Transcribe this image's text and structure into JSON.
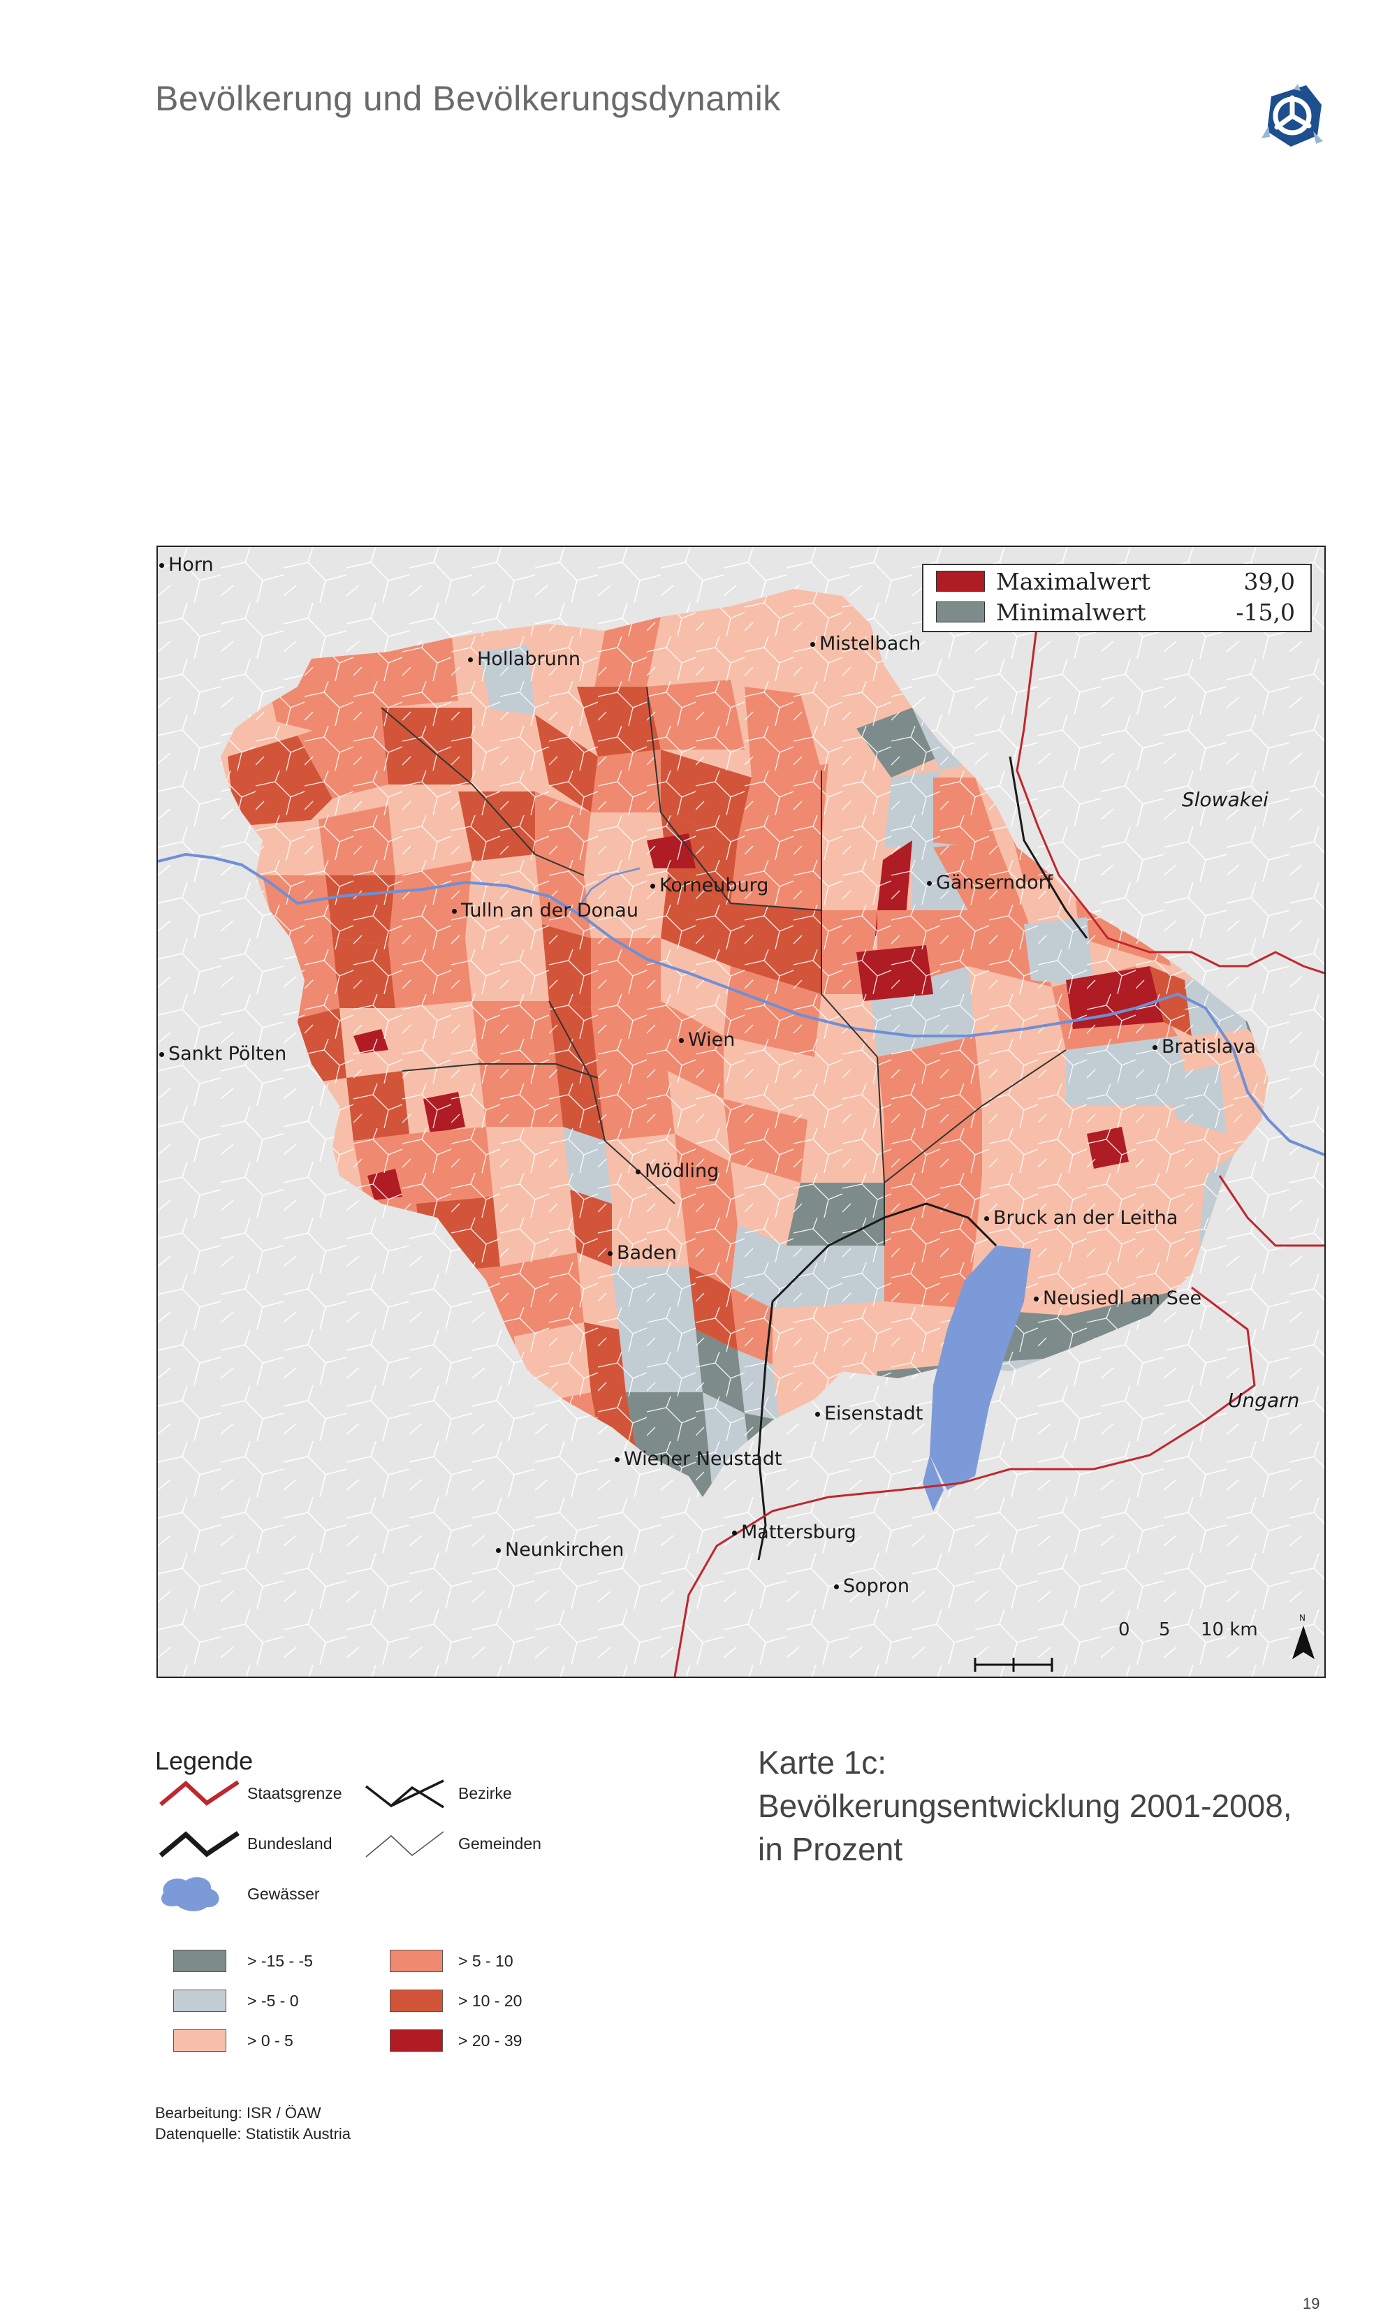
{
  "page": {
    "title": "Bevölkerung und Bevölkerungsdynamik",
    "number": "19"
  },
  "map": {
    "minmax": {
      "max_label": "Maximalwert",
      "max_value": "39,0",
      "max_color": "#b01c24",
      "min_label": "Minimalwert",
      "min_value": "-15,0",
      "min_color": "#7d8c8a"
    },
    "places": {
      "horn": "Horn",
      "hollabrunn": "Hollabrunn",
      "mistelbach": "Mistelbach",
      "korneuburg": "Korneuburg",
      "gaenserndorf": "Gänserndorf",
      "tulln": "Tulln an der Donau",
      "sankt_poelten": "Sankt Pölten",
      "wien": "Wien",
      "bratislava": "Bratislava",
      "moedling": "Mödling",
      "bruck": "Bruck an der Leitha",
      "baden": "Baden",
      "neusiedl": "Neusiedl am See",
      "eisenstadt": "Eisenstadt",
      "wiener_neustadt": "Wiener Neustadt",
      "mattersburg": "Mattersburg",
      "neunkirchen": "Neunkirchen",
      "sopron": "Sopron"
    },
    "countries": {
      "slowakei": "Slowakei",
      "ungarn": "Ungarn"
    },
    "scale": {
      "t0": "0",
      "t5": "5",
      "t10": "10 km",
      "north": "N"
    }
  },
  "legend": {
    "title": "Legende",
    "lines": {
      "staatsgrenze": "Staatsgrenze",
      "bezirke": "Bezirke",
      "bundesland": "Bundesland",
      "gemeinden": "Gemeinden",
      "gewaesser": "Gewässer"
    },
    "classes": [
      {
        "label": "> -15 - -5",
        "color": "#7d8c8a"
      },
      {
        "label": "> -5 - 0",
        "color": "#c2ccd3"
      },
      {
        "label": "> 0 - 5",
        "color": "#f7bfaa"
      },
      {
        "label": "> 5 - 10",
        "color": "#ef8a70"
      },
      {
        "label": "> 10 - 20",
        "color": "#d2553a"
      },
      {
        "label": "> 20 - 39",
        "color": "#b01c24"
      }
    ]
  },
  "caption": {
    "line1": "Karte 1c:",
    "line2": "Bevölkerungsentwicklung 2001-2008,",
    "line3": "in Prozent"
  },
  "credits": {
    "line1": "Bearbeitung: ISR / ÖAW",
    "line2": "Datenquelle: Statistik Austria"
  }
}
